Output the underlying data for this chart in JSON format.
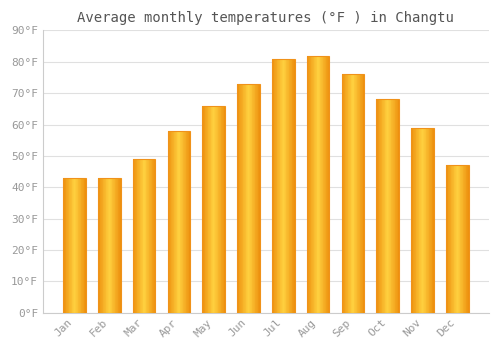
{
  "title": "Average monthly temperatures (°F ) in Changtu",
  "months": [
    "Jan",
    "Feb",
    "Mar",
    "Apr",
    "May",
    "Jun",
    "Jul",
    "Aug",
    "Sep",
    "Oct",
    "Nov",
    "Dec"
  ],
  "values": [
    43,
    43,
    49,
    58,
    66,
    73,
    81,
    82,
    76,
    68,
    59,
    47
  ],
  "bar_color_main": "#FFB300",
  "bar_color_edge": "#F0921A",
  "ylim": [
    0,
    90
  ],
  "yticks": [
    0,
    10,
    20,
    30,
    40,
    50,
    60,
    70,
    80,
    90
  ],
  "ytick_labels": [
    "0°F",
    "10°F",
    "20°F",
    "30°F",
    "40°F",
    "50°F",
    "60°F",
    "70°F",
    "80°F",
    "90°F"
  ],
  "background_color": "#ffffff",
  "plot_bg_color": "#ffffff",
  "grid_color": "#e0e0e0",
  "title_fontsize": 10,
  "tick_fontsize": 8,
  "bar_width": 0.65,
  "title_color": "#555555",
  "tick_color": "#999999"
}
